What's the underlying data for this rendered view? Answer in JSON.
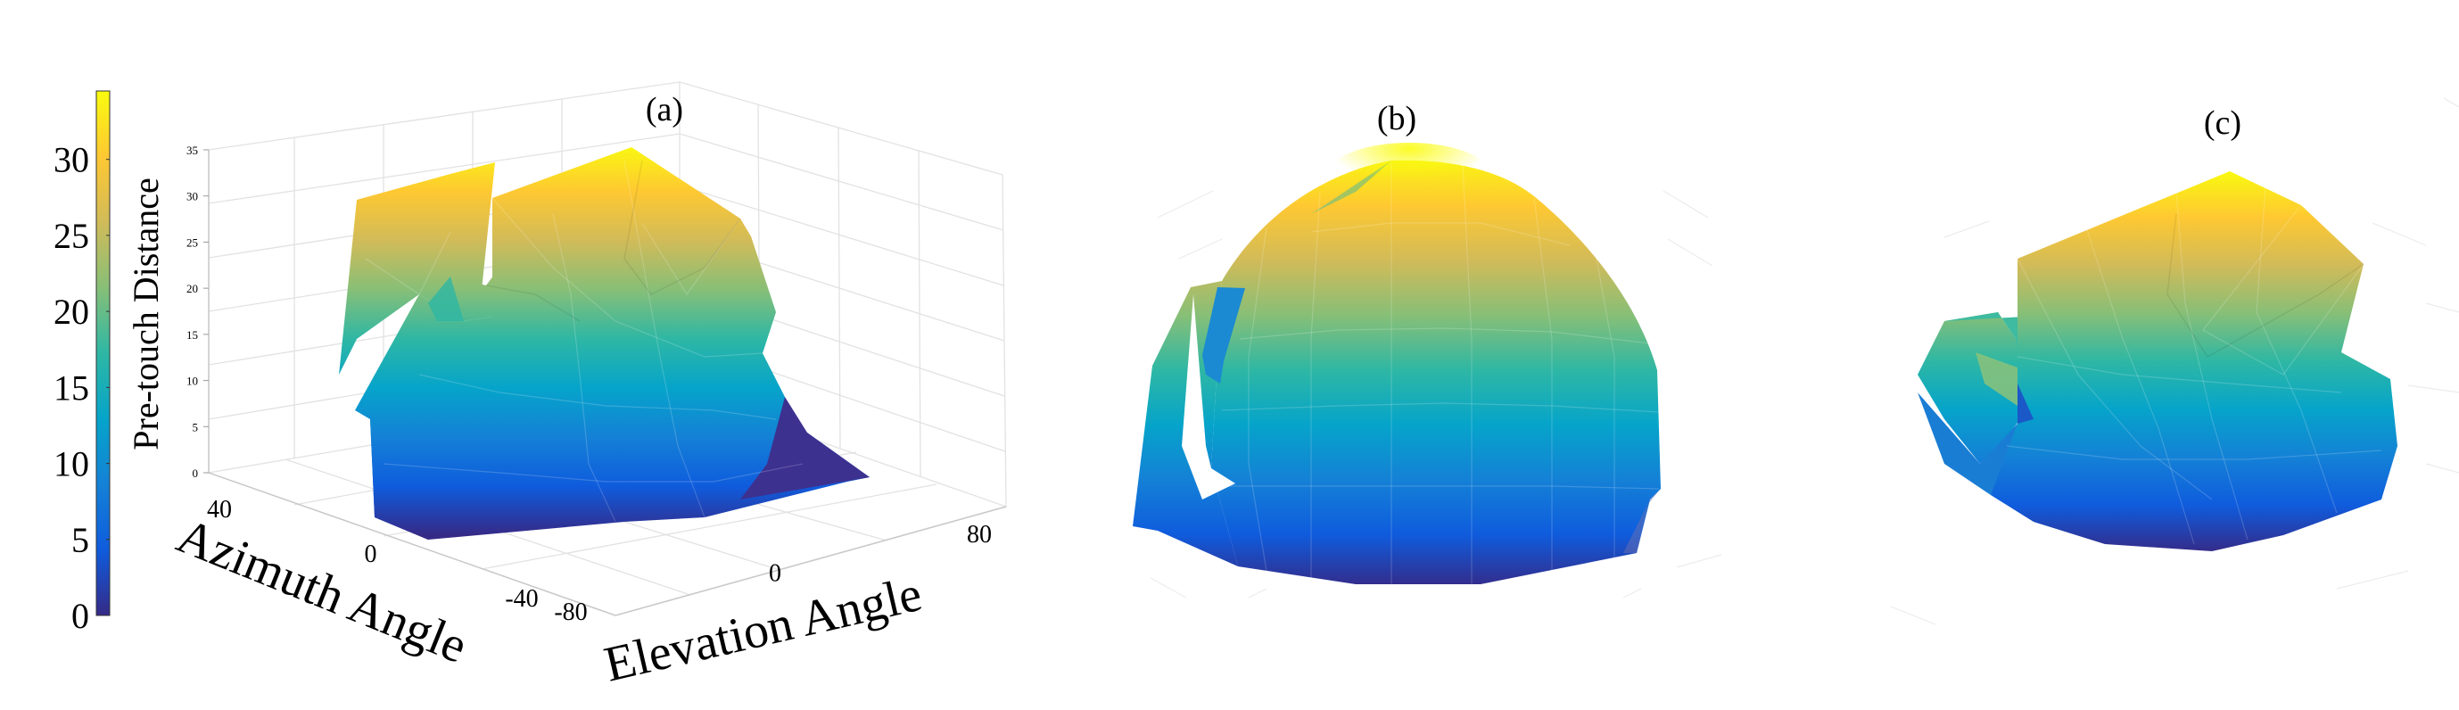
{
  "chart_data": [
    {
      "type": "surface",
      "panel_label": "(a)",
      "colorbar": {
        "label": "Pre-touch Distance",
        "ticks": [
          "0",
          "5",
          "10",
          "15",
          "20",
          "25",
          "30"
        ],
        "colormap": "parula",
        "colors": [
          "#352a87",
          "#0f5cdd",
          "#1481d6",
          "#06a4ca",
          "#2eb7a4",
          "#87bf77",
          "#d1bb59",
          "#fec832",
          "#f9fb0e"
        ]
      },
      "z_axis": {
        "ticks": [
          "0",
          "5",
          "10",
          "15",
          "20",
          "25",
          "30",
          "35"
        ],
        "range": [
          0,
          35
        ]
      },
      "y_axis": {
        "label": "Azimuth Angle",
        "ticks": [
          "40",
          "0",
          "-40"
        ]
      },
      "x_axis": {
        "label": "Elevation Angle",
        "ticks": [
          "-80",
          "0",
          "80"
        ]
      },
      "grid": true
    },
    {
      "type": "surface",
      "panel_label": "(b)",
      "view": "front"
    },
    {
      "type": "surface",
      "panel_label": "(c)",
      "view": "top-down"
    }
  ]
}
